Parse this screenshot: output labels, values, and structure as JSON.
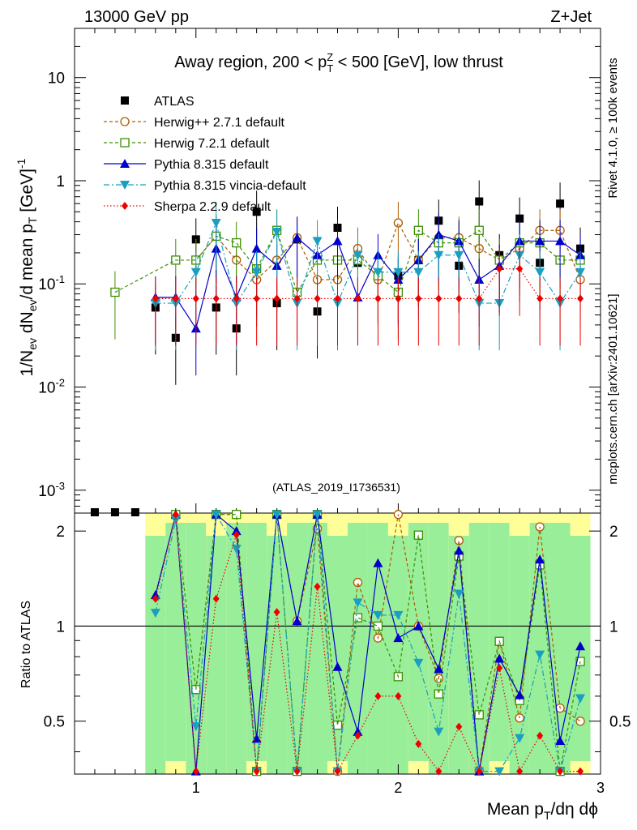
{
  "header": {
    "left": "13000 GeV pp",
    "right": "Z+Jet"
  },
  "side_labels": {
    "rivet": "Rivet 4.1.0, ≥ 100k events",
    "mcplots": "mcplots.cern.ch [arXiv:2401.10621]"
  },
  "watermark": "(ATLAS_2019_I1736531)",
  "chart_data": {
    "type": "scatter",
    "title": "Away region, 200 < p_T^Z < 500 [GeV], low thrust",
    "xlabel": "Mean p_T/dη dϕ",
    "ylabel": "1/N_ev dN_ev/d mean p_T [GeV]^-1",
    "ratio_ylabel": "Ratio to ATLAS",
    "xlim": [
      0.4,
      3.0
    ],
    "ylim": [
      0.0006,
      30
    ],
    "ratio_ylim": [
      0.34,
      2.28
    ],
    "yscale": "log",
    "x_ticks": [
      "1",
      "2",
      "3"
    ],
    "y_ticks": [
      "10^-3",
      "10^-2",
      "10^-1",
      "1",
      "10"
    ],
    "ratio_ticks": [
      "0.5",
      "1",
      "2"
    ],
    "x": [
      0.5,
      0.6,
      0.7,
      0.8,
      0.9,
      1.0,
      1.1,
      1.2,
      1.3,
      1.4,
      1.5,
      1.6,
      1.7,
      1.8,
      1.9,
      2.0,
      2.1,
      2.2,
      2.3,
      2.4,
      2.5,
      2.6,
      2.7,
      2.8,
      2.9
    ],
    "series": [
      {
        "name": "ATLAS",
        "color": "#000000",
        "marker": "square",
        "line": "none",
        "values": [
          0,
          0,
          0,
          0.059,
          0.03,
          0.27,
          0.059,
          0.037,
          0.5,
          0.065,
          0.27,
          0.054,
          0.35,
          0.16,
          0.12,
          0.12,
          0.17,
          0.41,
          0.15,
          0.63,
          0.19,
          0.43,
          0.16,
          0.6,
          0.22
        ]
      },
      {
        "name": "Herwig++ 2.7.1 default",
        "color": "#b05a00",
        "marker": "circle-open",
        "line": "dashed",
        "values": [
          null,
          null,
          null,
          null,
          null,
          0.17,
          0.29,
          0.17,
          0.11,
          0.17,
          0.28,
          0.11,
          0.11,
          0.22,
          0.11,
          0.39,
          0.17,
          0.28,
          0.28,
          0.22,
          0.17,
          0.22,
          0.33,
          0.33,
          0.11
        ]
      },
      {
        "name": "Herwig 7.2.1 default",
        "color": "#3a8f00",
        "marker": "square-open",
        "line": "dashed",
        "values": [
          null,
          0.083,
          null,
          null,
          0.17,
          0.17,
          0.29,
          0.25,
          0.14,
          0.33,
          0.083,
          0.17,
          0.17,
          0.17,
          0.12,
          0.083,
          0.33,
          0.25,
          0.25,
          0.33,
          0.17,
          0.25,
          0.25,
          0.17,
          0.17
        ]
      },
      {
        "name": "Pythia 8.315 default",
        "color": "#0000cc",
        "marker": "triangle-up",
        "line": "solid",
        "values": [
          null,
          null,
          null,
          0.074,
          0.074,
          0.037,
          0.22,
          0.074,
          0.22,
          0.15,
          0.28,
          0.19,
          0.26,
          0.074,
          0.19,
          0.11,
          0.17,
          0.3,
          0.26,
          0.11,
          0.15,
          0.26,
          0.26,
          0.26,
          0.19
        ]
      },
      {
        "name": "Pythia 8.315 vincia-default",
        "color": "#1a9fc0",
        "marker": "triangle-down",
        "line": "dashdot",
        "values": [
          null,
          null,
          null,
          0.065,
          0.065,
          0.13,
          0.39,
          0.065,
          0.13,
          0.32,
          0.065,
          0.26,
          0.065,
          0.19,
          0.13,
          0.13,
          0.13,
          0.19,
          0.19,
          0.065,
          0.065,
          0.19,
          0.13,
          0.065,
          0.13
        ]
      },
      {
        "name": "Sherpa 2.2.9 default",
        "color": "#ee0000",
        "marker": "diamond",
        "line": "dotted",
        "values": [
          null,
          null,
          null,
          0.072,
          0.072,
          0.072,
          0.072,
          0.072,
          0.072,
          0.072,
          0.072,
          0.072,
          0.072,
          0.072,
          0.072,
          0.072,
          0.072,
          0.072,
          0.072,
          0.072,
          0.14,
          0.14,
          0.072,
          0.072,
          0.072
        ]
      }
    ]
  }
}
